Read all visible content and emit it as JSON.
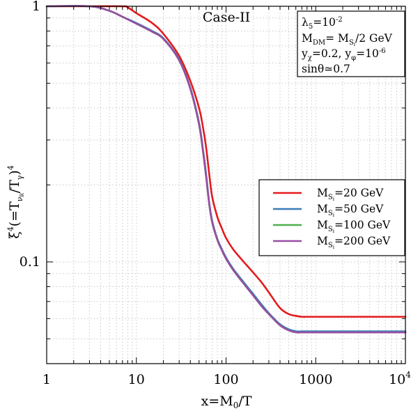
{
  "chart_data": {
    "type": "line",
    "title": "Case-II",
    "xlabel": "x=M0/T",
    "ylabel": "ξ4(=TνR/Tγ)4",
    "xscale": "log",
    "yscale": "log",
    "xlim": [
      1,
      10000
    ],
    "ylim": [
      0.04,
      1.0
    ],
    "x_tick_labels": [
      "1",
      "10",
      "100",
      "1000",
      "10^4"
    ],
    "y_tick_labels": [
      "1",
      "0.1"
    ],
    "grid": true,
    "legend_position": "center-right",
    "info_box": [
      "λ5=10-2",
      "MDM= MSi/2 GeV",
      "yχ=0.2, yφ=10-6",
      "sinθ≃0.7"
    ],
    "colors": {
      "ms20": "#e41a1c",
      "ms50": "#377eb8",
      "ms100": "#4daf4a",
      "ms200": "#984ea3"
    },
    "series": [
      {
        "name": "MSi=20 GeV",
        "color": "#e41a1c",
        "x": [
          1,
          3,
          7,
          8,
          10,
          15,
          20,
          30,
          40,
          50,
          55,
          60,
          65,
          70,
          80,
          90,
          100,
          120,
          150,
          200,
          250,
          300,
          400,
          500,
          600,
          700,
          800,
          1000,
          2000,
          5000,
          10000
        ],
        "y": [
          1.0,
          1.0,
          1.0,
          0.99,
          0.94,
          0.86,
          0.78,
          0.64,
          0.51,
          0.4,
          0.34,
          0.28,
          0.22,
          0.18,
          0.15,
          0.135,
          0.124,
          0.112,
          0.102,
          0.091,
          0.083,
          0.076,
          0.066,
          0.0625,
          0.0615,
          0.061,
          0.061,
          0.061,
          0.061,
          0.061,
          0.061
        ]
      },
      {
        "name": "MSi=50 GeV",
        "color": "#377eb8",
        "x": [
          1,
          3,
          5,
          7,
          10,
          15,
          20,
          30,
          40,
          50,
          55,
          60,
          65,
          70,
          80,
          90,
          100,
          120,
          150,
          200,
          250,
          300,
          400,
          500,
          600,
          700,
          800,
          1000,
          2000,
          5000,
          10000
        ],
        "y": [
          1.0,
          1.0,
          0.96,
          0.91,
          0.86,
          0.8,
          0.75,
          0.62,
          0.48,
          0.35,
          0.28,
          0.22,
          0.17,
          0.145,
          0.123,
          0.112,
          0.104,
          0.094,
          0.085,
          0.075,
          0.068,
          0.063,
          0.057,
          0.0545,
          0.0535,
          0.0535,
          0.0535,
          0.0535,
          0.0535,
          0.0535,
          0.0535
        ]
      },
      {
        "name": "MSi=100 GeV",
        "color": "#4daf4a",
        "x": [
          1,
          3,
          5,
          7,
          10,
          15,
          20,
          30,
          40,
          50,
          55,
          60,
          65,
          70,
          80,
          90,
          100,
          120,
          150,
          200,
          250,
          300,
          400,
          500,
          600,
          700,
          800,
          1000,
          2000,
          5000,
          10000
        ],
        "y": [
          1.0,
          1.0,
          0.96,
          0.91,
          0.855,
          0.795,
          0.745,
          0.615,
          0.475,
          0.345,
          0.275,
          0.215,
          0.168,
          0.143,
          0.122,
          0.111,
          0.103,
          0.093,
          0.084,
          0.074,
          0.067,
          0.0625,
          0.0565,
          0.054,
          0.053,
          0.053,
          0.053,
          0.053,
          0.053,
          0.053,
          0.053
        ]
      },
      {
        "name": "MSi=200 GeV",
        "color": "#984ea3",
        "x": [
          1,
          3,
          5,
          7,
          10,
          15,
          20,
          30,
          40,
          50,
          55,
          60,
          65,
          70,
          80,
          90,
          100,
          120,
          150,
          200,
          250,
          300,
          400,
          500,
          600,
          700,
          800,
          1000,
          2000,
          5000,
          10000
        ],
        "y": [
          1.0,
          1.0,
          0.96,
          0.91,
          0.855,
          0.795,
          0.745,
          0.615,
          0.475,
          0.345,
          0.275,
          0.215,
          0.168,
          0.143,
          0.122,
          0.111,
          0.103,
          0.093,
          0.084,
          0.074,
          0.067,
          0.0625,
          0.0565,
          0.054,
          0.053,
          0.053,
          0.053,
          0.053,
          0.053,
          0.053,
          0.053
        ]
      }
    ]
  }
}
